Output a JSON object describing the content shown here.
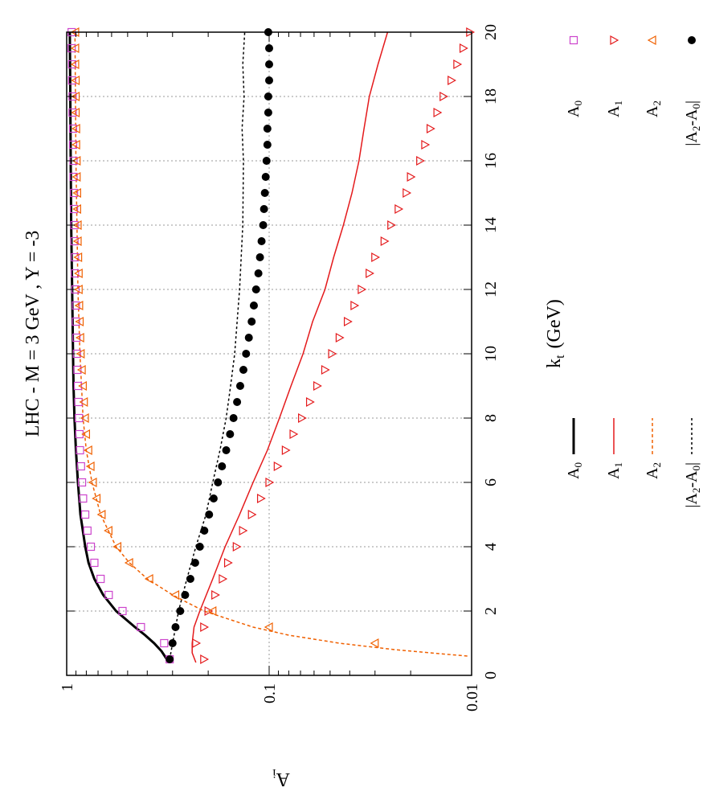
{
  "chart_data": {
    "type": "line",
    "title": "LHC  -  M = 3 GeV , Y = -3",
    "xlabel": "k",
    "xlabel_sub": "t",
    "xlabel_unit": "(GeV)",
    "ylabel": "A",
    "ylabel_sub": "i",
    "xlim": [
      0,
      20
    ],
    "ylim": [
      0.01,
      1
    ],
    "yscale": "log",
    "grid": true,
    "x_ticks": [
      "0",
      "2",
      "4",
      "6",
      "8",
      "10",
      "12",
      "14",
      "16",
      "18",
      "20"
    ],
    "y_ticks": [
      "1",
      "0.1",
      "0.01"
    ],
    "legend_lines": [
      {
        "label": "A",
        "sub": "0"
      },
      {
        "label": "A",
        "sub": "1"
      },
      {
        "label": "A",
        "sub": "2"
      },
      {
        "label": "|A",
        "sub": "2",
        "rest": "-A",
        "sub2": "0",
        "end": "|"
      }
    ],
    "legend_points": [
      {
        "label": "A",
        "sub": "0"
      },
      {
        "label": "A",
        "sub": "1"
      },
      {
        "label": "A",
        "sub": "2"
      },
      {
        "label": "|A",
        "sub": "2",
        "rest": "-A",
        "sub2": "0",
        "end": "|"
      }
    ],
    "colors": {
      "A0_line": "#000000",
      "A1_line": "#e41a1c",
      "A2_line": "#f06000",
      "diff_line": "#000000",
      "A0_points": "#cc44cc",
      "A1_points": "#e41a1c",
      "A2_points": "#f06000",
      "diff_points": "#000000"
    },
    "lines": {
      "A0": {
        "x": [
          0.5,
          0.75,
          1.0,
          1.25,
          1.5,
          2.0,
          2.5,
          3.0,
          3.5,
          4.0,
          5.0,
          6.0,
          7.0,
          8.0,
          9.0,
          10.0,
          12.0,
          14.0,
          16.0,
          18.0,
          20.0
        ],
        "y": [
          0.32,
          0.34,
          0.37,
          0.41,
          0.46,
          0.57,
          0.66,
          0.73,
          0.78,
          0.81,
          0.855,
          0.88,
          0.9,
          0.915,
          0.925,
          0.93,
          0.94,
          0.95,
          0.955,
          0.96,
          0.965
        ]
      },
      "A1": {
        "x": [
          0.4,
          0.7,
          1.0,
          1.5,
          2.0,
          3.0,
          4.0,
          5.0,
          6.0,
          7.0,
          8.0,
          9.0,
          10.0,
          11.0,
          12.0,
          13.0,
          14.0,
          15.0,
          16.0,
          17.0,
          18.0,
          19.0,
          20.0
        ],
        "y": [
          0.23,
          0.24,
          0.24,
          0.235,
          0.22,
          0.19,
          0.165,
          0.14,
          0.12,
          0.102,
          0.089,
          0.078,
          0.068,
          0.061,
          0.053,
          0.048,
          0.043,
          0.039,
          0.036,
          0.034,
          0.032,
          0.029,
          0.026
        ]
      },
      "A2": {
        "x": [
          0.6,
          0.7,
          0.8,
          1.0,
          1.25,
          1.5,
          2.0,
          2.5,
          3.0,
          3.5,
          4.0,
          5.0,
          6.0,
          7.0,
          8.0,
          10.0,
          12.0,
          14.0,
          16.0,
          18.0,
          20.0
        ],
        "y": [
          0.0105,
          0.016,
          0.024,
          0.045,
          0.08,
          0.12,
          0.21,
          0.3,
          0.4,
          0.49,
          0.57,
          0.68,
          0.75,
          0.8,
          0.83,
          0.86,
          0.88,
          0.89,
          0.9,
          0.905,
          0.91
        ]
      },
      "diff": {
        "x": [
          0.5,
          1.0,
          2.0,
          3.0,
          4.0,
          5.0,
          6.0,
          7.0,
          8.0,
          9.0,
          10.0,
          12.0,
          14.0,
          16.0,
          17.0,
          18.0,
          19.0,
          20.0
        ],
        "y": [
          0.31,
          0.3,
          0.28,
          0.255,
          0.23,
          0.205,
          0.19,
          0.175,
          0.163,
          0.155,
          0.148,
          0.14,
          0.135,
          0.134,
          0.136,
          0.133,
          0.135,
          0.132
        ]
      }
    },
    "points": {
      "A0": {
        "x": [
          0.5,
          1.0,
          1.5,
          2.0,
          2.5,
          3.0,
          3.5,
          4.0,
          4.5,
          5.0,
          5.5,
          6.0,
          6.5,
          7.0,
          7.5,
          8.0,
          8.5,
          9.0,
          9.5,
          10.0,
          10.5,
          11.0,
          11.5,
          12.0,
          12.5,
          13.0,
          13.5,
          14.0,
          14.5,
          15.0,
          15.5,
          16.0,
          16.5,
          17.0,
          17.5,
          18.0,
          18.5,
          19.0,
          19.5,
          20.0
        ],
        "y": [
          0.31,
          0.33,
          0.43,
          0.53,
          0.62,
          0.68,
          0.73,
          0.76,
          0.79,
          0.81,
          0.83,
          0.84,
          0.85,
          0.86,
          0.865,
          0.87,
          0.875,
          0.88,
          0.885,
          0.89,
          0.895,
          0.9,
          0.9,
          0.905,
          0.91,
          0.91,
          0.915,
          0.915,
          0.92,
          0.92,
          0.925,
          0.925,
          0.93,
          0.93,
          0.935,
          0.935,
          0.94,
          0.94,
          0.945,
          0.945
        ]
      },
      "A1": {
        "x": [
          0.5,
          1.0,
          1.5,
          2.0,
          2.5,
          3.0,
          3.5,
          4.0,
          4.5,
          5.0,
          5.5,
          6.0,
          6.5,
          7.0,
          7.5,
          8.0,
          8.5,
          9.0,
          9.5,
          10.0,
          10.5,
          11.0,
          11.5,
          12.0,
          12.5,
          13.0,
          13.5,
          14.0,
          14.5,
          15.0,
          15.5,
          16.0,
          16.5,
          17.0,
          17.5,
          18.0,
          18.5,
          19.0,
          19.5,
          20.0
        ],
        "y": [
          0.21,
          0.23,
          0.21,
          0.2,
          0.185,
          0.17,
          0.16,
          0.145,
          0.135,
          0.122,
          0.11,
          0.1,
          0.091,
          0.083,
          0.076,
          0.069,
          0.063,
          0.058,
          0.053,
          0.049,
          0.045,
          0.041,
          0.038,
          0.035,
          0.032,
          0.03,
          0.027,
          0.025,
          0.023,
          0.021,
          0.02,
          0.018,
          0.017,
          0.016,
          0.0148,
          0.0138,
          0.0126,
          0.0118,
          0.011,
          0.0102
        ]
      },
      "A2": {
        "x": [
          1.0,
          1.5,
          2.0,
          2.5,
          3.0,
          3.5,
          4.0,
          4.5,
          5.0,
          5.5,
          6.0,
          6.5,
          7.0,
          7.5,
          8.0,
          8.5,
          9.0,
          9.5,
          10.0,
          10.5,
          11.0,
          11.5,
          12.0,
          12.5,
          13.0,
          13.5,
          14.0,
          14.5,
          15.0,
          15.5,
          16.0,
          16.5,
          17.0,
          17.5,
          18.0,
          18.5,
          19.0,
          19.5,
          20.0
        ],
        "y": [
          0.03,
          0.1,
          0.19,
          0.29,
          0.39,
          0.49,
          0.56,
          0.62,
          0.67,
          0.71,
          0.74,
          0.76,
          0.78,
          0.8,
          0.81,
          0.82,
          0.83,
          0.84,
          0.85,
          0.855,
          0.86,
          0.865,
          0.87,
          0.87,
          0.875,
          0.88,
          0.88,
          0.885,
          0.885,
          0.89,
          0.89,
          0.895,
          0.895,
          0.9,
          0.9,
          0.9,
          0.905,
          0.905,
          0.905
        ]
      },
      "diff": {
        "x": [
          0.5,
          1.0,
          1.5,
          2.0,
          2.5,
          3.0,
          3.5,
          4.0,
          4.5,
          5.0,
          5.5,
          6.0,
          6.5,
          7.0,
          7.5,
          8.0,
          8.5,
          9.0,
          9.5,
          10.0,
          10.5,
          11.0,
          11.5,
          12.0,
          12.5,
          13.0,
          13.5,
          14.0,
          14.5,
          15.0,
          15.5,
          16.0,
          16.5,
          17.0,
          17.5,
          18.0,
          18.5,
          19.0,
          19.5,
          20.0
        ],
        "y": [
          0.31,
          0.3,
          0.29,
          0.275,
          0.26,
          0.245,
          0.232,
          0.22,
          0.209,
          0.198,
          0.188,
          0.179,
          0.171,
          0.163,
          0.156,
          0.15,
          0.144,
          0.139,
          0.134,
          0.13,
          0.126,
          0.122,
          0.119,
          0.116,
          0.113,
          0.111,
          0.109,
          0.107,
          0.106,
          0.105,
          0.104,
          0.103,
          0.102,
          0.102,
          0.101,
          0.101,
          0.1,
          0.1,
          0.1,
          0.101
        ]
      }
    }
  }
}
